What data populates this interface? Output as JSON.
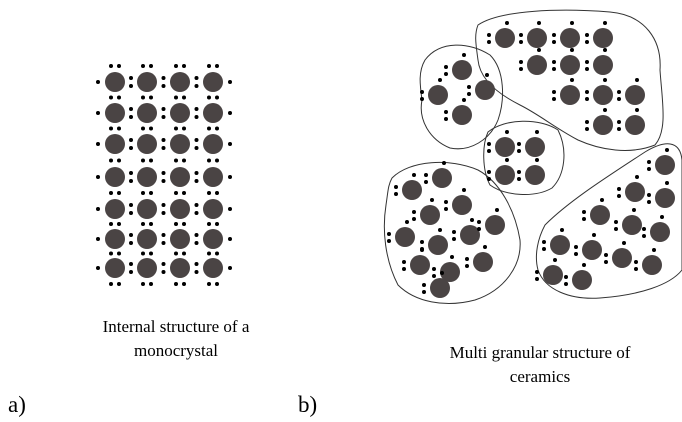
{
  "panels": [
    {
      "letter": "a)",
      "caption_lines": [
        "Internal structure of a",
        "monocrystal"
      ]
    },
    {
      "letter": "b)",
      "caption_lines": [
        "Multi granular structure of",
        "ceramics"
      ]
    }
  ]
}
